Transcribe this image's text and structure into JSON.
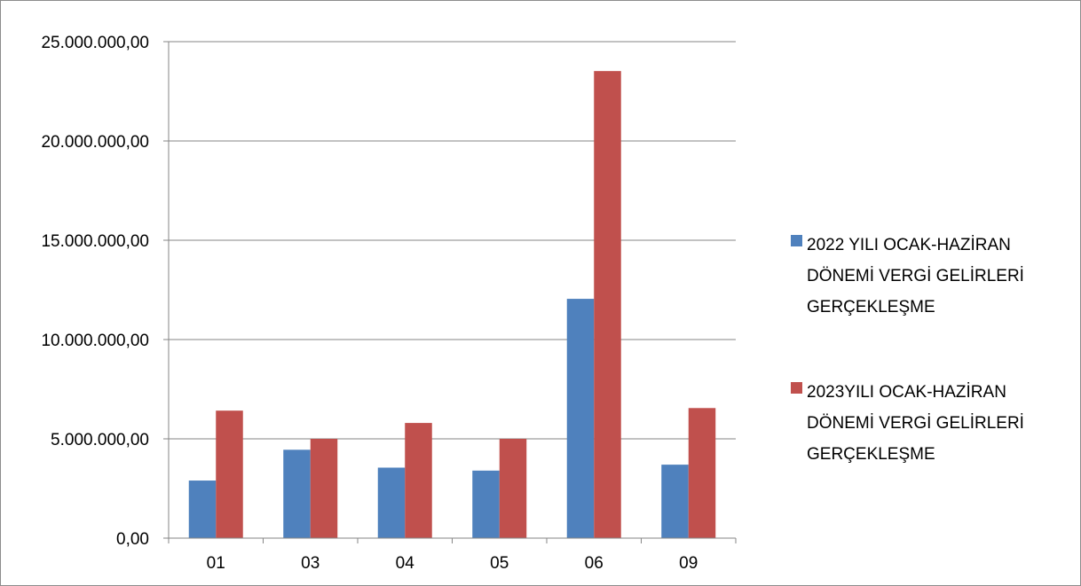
{
  "chart_data": {
    "type": "bar",
    "categories": [
      "01",
      "03",
      "04",
      "05",
      "06",
      "09"
    ],
    "series": [
      {
        "name": "2022 YILI OCAK-HAZİRAN DÖNEMİ VERGİ GELİRLERİ GERÇEKLEŞME",
        "color": "#4f81bd",
        "values": [
          2900000,
          4450000,
          3550000,
          3400000,
          12050000,
          3700000
        ]
      },
      {
        "name": "2023YILI OCAK-HAZİRAN DÖNEMİ VERGİ GELİRLERİ GERÇEKLEŞME",
        "color": "#c0504d",
        "values": [
          6420000,
          5000000,
          5800000,
          5000000,
          23520000,
          6550000
        ]
      }
    ],
    "y_ticks": [
      "0,00",
      "5.000.000,00",
      "10.000.000,00",
      "15.000.000,00",
      "20.000.000,00",
      "25.000.000,00"
    ],
    "ylim": [
      0,
      25000000
    ],
    "grid": true,
    "legend_position": "right",
    "title": "",
    "xlabel": "",
    "ylabel": ""
  }
}
